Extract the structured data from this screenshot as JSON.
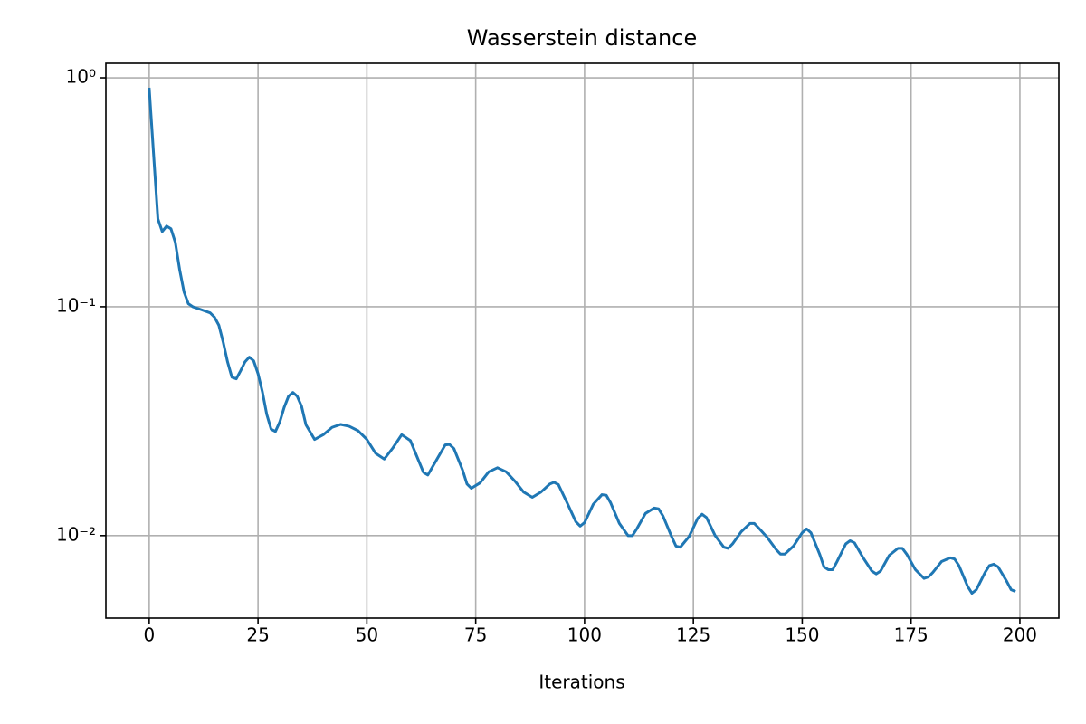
{
  "chart_data": {
    "type": "line",
    "title": "Wasserstein distance",
    "x_label": "Iterations",
    "log_y": true,
    "grid": true,
    "xlim": [
      -9.95,
      208.95
    ],
    "xticks": [
      0,
      25,
      50,
      75,
      100,
      125,
      150,
      175,
      200
    ],
    "ylim": [
      0.00436,
      1.157
    ],
    "yticks": [
      {
        "value": 1,
        "label": "10⁰"
      },
      {
        "value": 0.1,
        "label": "10⁻¹"
      },
      {
        "value": 0.01,
        "label": "10⁻²"
      }
    ],
    "series": [
      {
        "color": "#1f77b4",
        "x": [
          0,
          1,
          2,
          3,
          4,
          5,
          6,
          7,
          8,
          9,
          10,
          12,
          14,
          15,
          16,
          17,
          18,
          19,
          20,
          21,
          22,
          23,
          24,
          25,
          26,
          27,
          28,
          29,
          30,
          31,
          32,
          33,
          34,
          35,
          36,
          38,
          40,
          42,
          44,
          46,
          48,
          50,
          52,
          54,
          56,
          58,
          60,
          62,
          63,
          64,
          66,
          68,
          69,
          70,
          72,
          73,
          74,
          76,
          78,
          80,
          82,
          84,
          86,
          88,
          90,
          92,
          93,
          94,
          96,
          98,
          99,
          100,
          102,
          104,
          105,
          106,
          108,
          110,
          111,
          112,
          114,
          116,
          117,
          118,
          120,
          121,
          122,
          124,
          126,
          127,
          128,
          130,
          132,
          133,
          134,
          136,
          138,
          139,
          140,
          142,
          144,
          145,
          146,
          148,
          150,
          151,
          152,
          154,
          155,
          156,
          157,
          158,
          160,
          161,
          162,
          164,
          166,
          167,
          168,
          170,
          172,
          173,
          174,
          176,
          178,
          179,
          180,
          182,
          184,
          185,
          186,
          188,
          189,
          190,
          192,
          193,
          194,
          195,
          197,
          198,
          199
        ],
        "values": [
          0.905,
          0.466,
          0.242,
          0.213,
          0.225,
          0.219,
          0.191,
          0.145,
          0.116,
          0.103,
          0.1,
          0.097,
          0.094,
          0.09,
          0.083,
          0.07,
          0.0574,
          0.0492,
          0.0484,
          0.0525,
          0.0574,
          0.0602,
          0.058,
          0.051,
          0.0425,
          0.0339,
          0.0292,
          0.0285,
          0.0314,
          0.0363,
          0.0406,
          0.0422,
          0.0406,
          0.0367,
          0.0305,
          0.0263,
          0.0276,
          0.0297,
          0.0306,
          0.03,
          0.0287,
          0.0263,
          0.0229,
          0.0216,
          0.0242,
          0.0276,
          0.026,
          0.021,
          0.0189,
          0.0184,
          0.0214,
          0.0249,
          0.025,
          0.024,
          0.0193,
          0.0168,
          0.0161,
          0.017,
          0.019,
          0.0198,
          0.019,
          0.0173,
          0.0155,
          0.0147,
          0.0155,
          0.0168,
          0.0171,
          0.0167,
          0.0139,
          0.0115,
          0.011,
          0.0114,
          0.0137,
          0.0151,
          0.015,
          0.0139,
          0.0113,
          0.01,
          0.01,
          0.0107,
          0.0125,
          0.0132,
          0.0131,
          0.0122,
          0.0099,
          0.009,
          0.0089,
          0.0099,
          0.0119,
          0.0124,
          0.012,
          0.01,
          0.0089,
          0.0088,
          0.0092,
          0.0104,
          0.0113,
          0.0113,
          0.0108,
          0.0098,
          0.0087,
          0.0083,
          0.0083,
          0.009,
          0.0103,
          0.0107,
          0.0103,
          0.0083,
          0.0073,
          0.0071,
          0.0071,
          0.0077,
          0.0092,
          0.0095,
          0.0093,
          0.008,
          0.007,
          0.0068,
          0.007,
          0.0082,
          0.0088,
          0.0088,
          0.0083,
          0.0071,
          0.0065,
          0.0066,
          0.0069,
          0.0077,
          0.008,
          0.0079,
          0.0074,
          0.006,
          0.0056,
          0.0058,
          0.0069,
          0.0074,
          0.0075,
          0.0073,
          0.0063,
          0.0058,
          0.0057
        ]
      }
    ]
  }
}
